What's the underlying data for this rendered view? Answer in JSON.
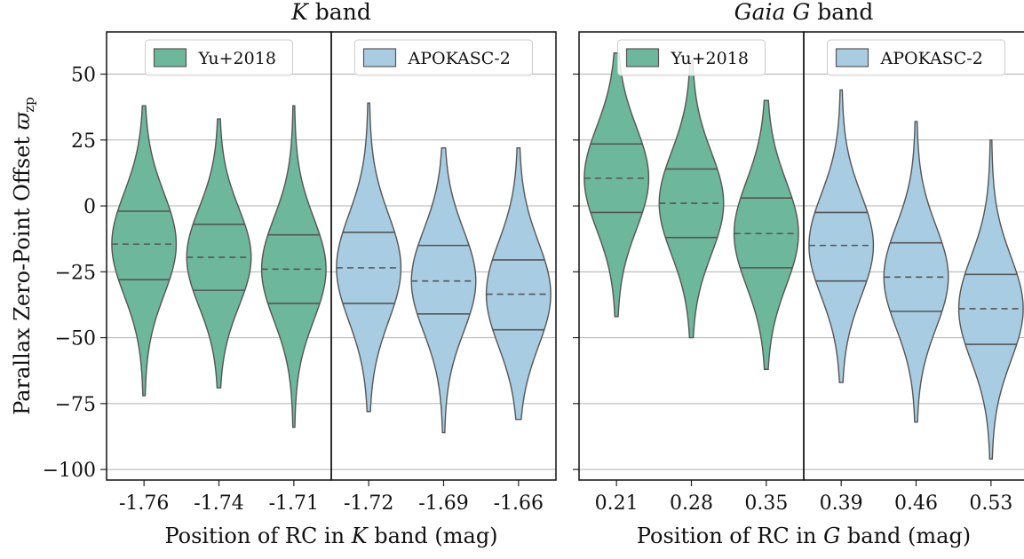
{
  "chart_data": {
    "type": "violin",
    "ylabel": "Parallax Zero-Point Offset ϖ",
    "ylabel_subscript": "zp",
    "ylim": [
      -104,
      66
    ],
    "yticks": [
      50,
      25,
      0,
      -25,
      -50,
      -75,
      -100
    ],
    "ytick_labels": [
      "50",
      "25",
      "0",
      "−25",
      "−50",
      "−75",
      "−100"
    ],
    "grid": "horizontal",
    "colors": {
      "Yu+2018": "#6db79c",
      "APOKASC-2": "#a8cde2"
    },
    "panels": [
      {
        "title": "K band",
        "title_italic": "K",
        "title_rest": " band",
        "xlabel": "Position of RC in K band (mag)",
        "xlabel_pre": "Position of RC in ",
        "xlabel_italic": "K",
        "xlabel_post": " band (mag)",
        "subplots": [
          {
            "legend": "Yu+2018",
            "categories": [
              "-1.76",
              "-1.74",
              "-1.71"
            ],
            "violins": [
              {
                "min": -72,
                "max": 38,
                "q1": -28,
                "median": -14.5,
                "q3": -2
              },
              {
                "min": -69,
                "max": 33,
                "q1": -32,
                "median": -19.5,
                "q3": -7
              },
              {
                "min": -84,
                "max": 38,
                "q1": -37,
                "median": -24,
                "q3": -11
              }
            ]
          },
          {
            "legend": "APOKASC-2",
            "categories": [
              "-1.72",
              "-1.69",
              "-1.66"
            ],
            "violins": [
              {
                "min": -78,
                "max": 39,
                "q1": -37,
                "median": -23.5,
                "q3": -10
              },
              {
                "min": -86,
                "max": 22,
                "q1": -41,
                "median": -28.5,
                "q3": -15
              },
              {
                "min": -81,
                "max": 22,
                "q1": -47,
                "median": -33.5,
                "q3": -20.5
              }
            ]
          }
        ]
      },
      {
        "title": "Gaia G band",
        "title_italic": "Gaia G",
        "title_rest": " band",
        "xlabel": "Position of RC in G band (mag)",
        "xlabel_pre": "Position of RC in ",
        "xlabel_italic": "G",
        "xlabel_post": " band (mag)",
        "subplots": [
          {
            "legend": "Yu+2018",
            "categories": [
              "0.21",
              "0.28",
              "0.35"
            ],
            "violins": [
              {
                "min": -42,
                "max": 58,
                "q1": -2.5,
                "median": 10.5,
                "q3": 23.5
              },
              {
                "min": -50,
                "max": 55,
                "q1": -12,
                "median": 1,
                "q3": 14
              },
              {
                "min": -62,
                "max": 40,
                "q1": -23.5,
                "median": -10.5,
                "q3": 3
              }
            ]
          },
          {
            "legend": "APOKASC-2",
            "categories": [
              "0.39",
              "0.46",
              "0.53"
            ],
            "violins": [
              {
                "min": -67,
                "max": 44,
                "q1": -28.5,
                "median": -15,
                "q3": -2.5
              },
              {
                "min": -82,
                "max": 32,
                "q1": -40,
                "median": -27,
                "q3": -14
              },
              {
                "min": -96,
                "max": 25,
                "q1": -52.5,
                "median": -39,
                "q3": -26
              }
            ]
          }
        ]
      }
    ]
  }
}
